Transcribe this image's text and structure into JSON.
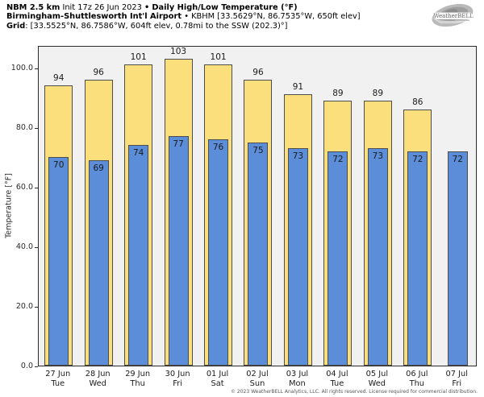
{
  "header": {
    "model": "NBM 2.5 km",
    "init": "Init 17z 26 Jun 2023",
    "bullet": "•",
    "title": "Daily High/Low Temperature (°F)",
    "station": "Birmingham-Shuttlesworth Int'l Airport",
    "station_details": "KBHM [33.5629°N, 86.7535°W, 650ft elev]",
    "grid_label": "Grid",
    "grid_details": ": [33.5525°N, 86.7586°W, 604ft elev, 0.78mi to the SSW (202.3)°]"
  },
  "logo": {
    "brand": "WeatherBELL"
  },
  "chart_data": {
    "type": "bar",
    "title": "Daily High/Low Temperature (°F)",
    "xlabel": "",
    "ylabel": "Temperature [°F]",
    "ylim": [
      0,
      107.5
    ],
    "yticks": [
      0,
      20,
      40,
      60,
      80,
      100
    ],
    "grid": false,
    "legend": "none",
    "categories": [
      "27 Jun",
      "28 Jun",
      "29 Jun",
      "30 Jun",
      "01 Jul",
      "02 Jul",
      "03 Jul",
      "04 Jul",
      "05 Jul",
      "06 Jul",
      "07 Jul"
    ],
    "weekdays": [
      "Tue",
      "Wed",
      "Thu",
      "Fri",
      "Sat",
      "Sun",
      "Mon",
      "Tue",
      "Wed",
      "Thu",
      "Fri"
    ],
    "series": [
      {
        "name": "High",
        "color": "#fbdf7d",
        "values": [
          94,
          96,
          101,
          103,
          101,
          96,
          91,
          89,
          89,
          86,
          null
        ]
      },
      {
        "name": "Low",
        "color": "#5b8dd9",
        "values": [
          70,
          69,
          74,
          77,
          76,
          75,
          73,
          72,
          73,
          72,
          72
        ]
      }
    ]
  },
  "footer": {
    "copyright": "© 2023 WeatherBELL Analytics, LLC. All rights reserved. License required for commercial distribution."
  },
  "colors": {
    "high_fill": "#fbdf7d",
    "low_fill": "#5b8dd9",
    "bar_border": "#4d4d4d",
    "plot_bg": "#f1f1f1",
    "frame": "#2b2b2b"
  }
}
